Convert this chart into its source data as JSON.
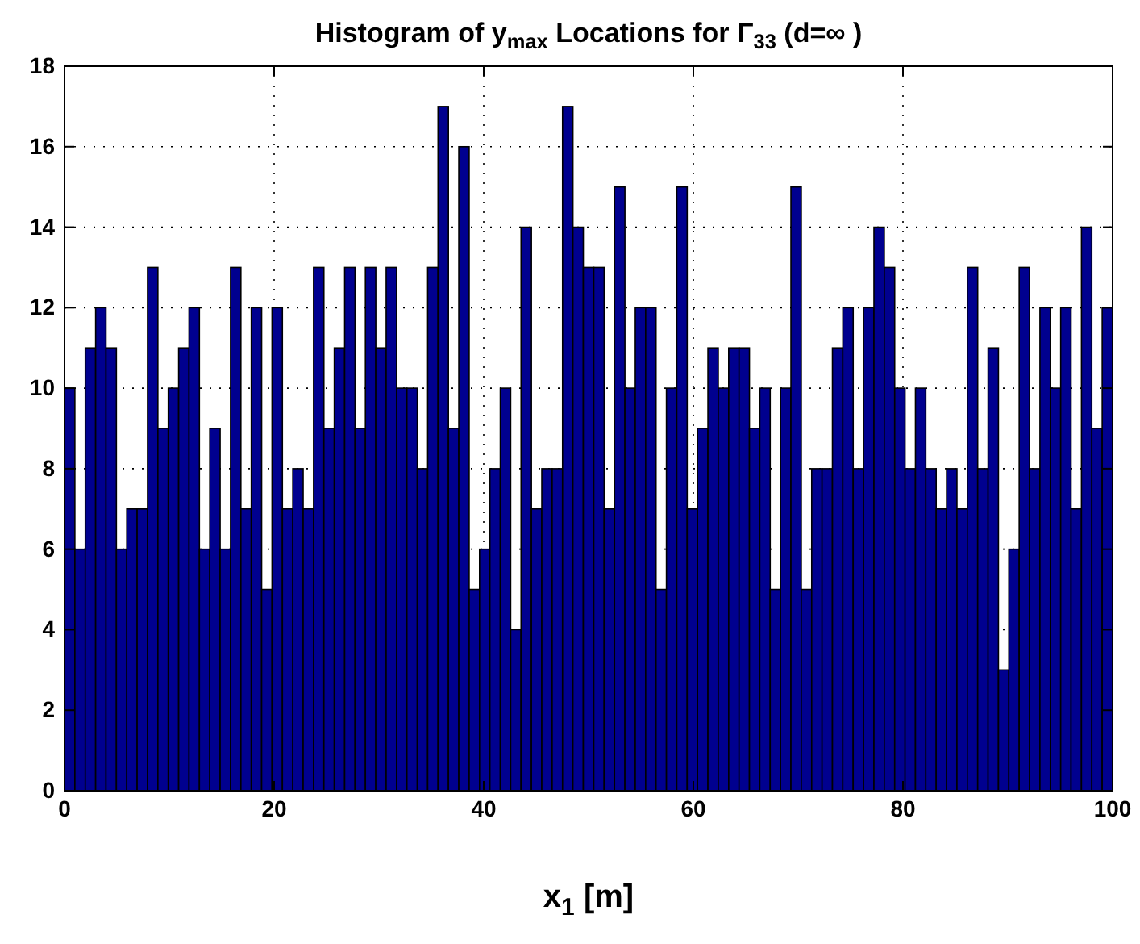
{
  "chart_data": {
    "type": "histogram",
    "title": "Histogram of y$_{max}$ Locations for Γ$_{33}$ (d=∞ )",
    "xlabel": "x$_{1}$ [m]",
    "bins": [
      0,
      0.99,
      1.98,
      2.97,
      3.96,
      4.95,
      5.94,
      6.93,
      7.92,
      8.91,
      9.9,
      10.89,
      11.88,
      12.87,
      13.86,
      14.85,
      15.84,
      16.83,
      17.82,
      18.81,
      19.8,
      20.79,
      21.78,
      22.77,
      23.76,
      24.75,
      25.74,
      26.73,
      27.72,
      28.71,
      29.7,
      30.69,
      31.68,
      32.67,
      33.66,
      34.65,
      35.64,
      36.63,
      37.62,
      38.61,
      39.6,
      40.59,
      41.58,
      42.57,
      43.56,
      44.55,
      45.54,
      46.53,
      47.52,
      48.51,
      49.5,
      50.5,
      51.49,
      52.48,
      53.47,
      54.46,
      55.45,
      56.44,
      57.43,
      58.42,
      59.41,
      60.4,
      61.39,
      62.38,
      63.37,
      64.36,
      65.35,
      66.34,
      67.33,
      68.32,
      69.31,
      70.3,
      71.29,
      72.28,
      73.27,
      74.26,
      75.25,
      76.24,
      77.23,
      78.22,
      79.21,
      80.2,
      81.19,
      82.18,
      83.17,
      84.16,
      85.15,
      86.14,
      87.13,
      88.12,
      89.11,
      90.1,
      91.09,
      92.08,
      93.07,
      94.06,
      95.05,
      96.04,
      97.03,
      98.02,
      99.01,
      100
    ],
    "values": [
      10,
      6,
      11,
      12,
      11,
      6,
      7,
      7,
      13,
      9,
      10,
      11,
      12,
      6,
      9,
      6,
      13,
      7,
      12,
      5,
      12,
      7,
      8,
      7,
      13,
      9,
      11,
      13,
      9,
      13,
      11,
      13,
      10,
      10,
      8,
      13,
      17,
      9,
      16,
      5,
      6,
      8,
      10,
      4,
      14,
      7,
      8,
      8,
      17,
      14,
      13,
      13,
      7,
      15,
      10,
      12,
      12,
      5,
      10,
      15,
      7,
      9,
      11,
      10,
      11,
      11,
      9,
      10,
      5,
      10,
      15,
      5,
      8,
      8,
      11,
      12,
      8,
      12,
      14,
      13,
      10,
      8,
      10,
      8,
      7,
      8,
      7,
      13,
      8,
      11,
      3,
      6,
      13,
      8,
      12,
      10,
      12,
      7,
      14,
      9,
      12
    ],
    "color": "#00008f",
    "xlim": [
      0,
      100
    ],
    "xticks": [
      0,
      20,
      40,
      60,
      80,
      100
    ],
    "ylim": [
      0,
      18
    ],
    "yticks": [
      0,
      2,
      4,
      6,
      8,
      10,
      12,
      14,
      16,
      18
    ],
    "grid": true
  }
}
